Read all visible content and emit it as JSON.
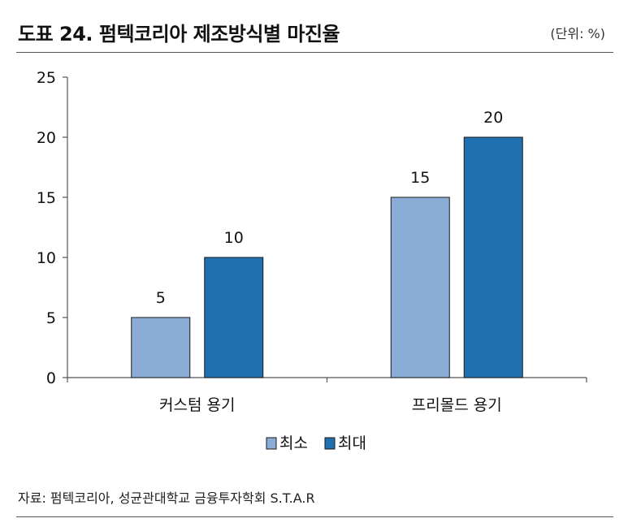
{
  "header": {
    "title": "도표 24. 펌텍코리아 제조방식별 마진율",
    "unit": "(단위: %)"
  },
  "footer": {
    "source": "자료: 펌텍코리아, 성균관대학교 금융투자학회 S.T.A.R"
  },
  "colors": {
    "min_series": "#8aabd6",
    "max_series": "#2070b0",
    "axis": "#555555"
  },
  "chart_data": {
    "type": "bar",
    "title": "",
    "xlabel": "",
    "ylabel": "",
    "categories": [
      "커스텀 용기",
      "프리몰드 용기"
    ],
    "series": [
      {
        "name": "최소",
        "values": [
          5,
          15
        ]
      },
      {
        "name": "최대",
        "values": [
          10,
          20
        ]
      }
    ],
    "ylim": [
      0,
      25
    ],
    "yticks": [
      "0",
      "5",
      "10",
      "15",
      "20",
      "25"
    ],
    "data_labels": [
      [
        "5",
        "15"
      ],
      [
        "10",
        "20"
      ]
    ],
    "grid": false,
    "legend": "bottom-center"
  }
}
